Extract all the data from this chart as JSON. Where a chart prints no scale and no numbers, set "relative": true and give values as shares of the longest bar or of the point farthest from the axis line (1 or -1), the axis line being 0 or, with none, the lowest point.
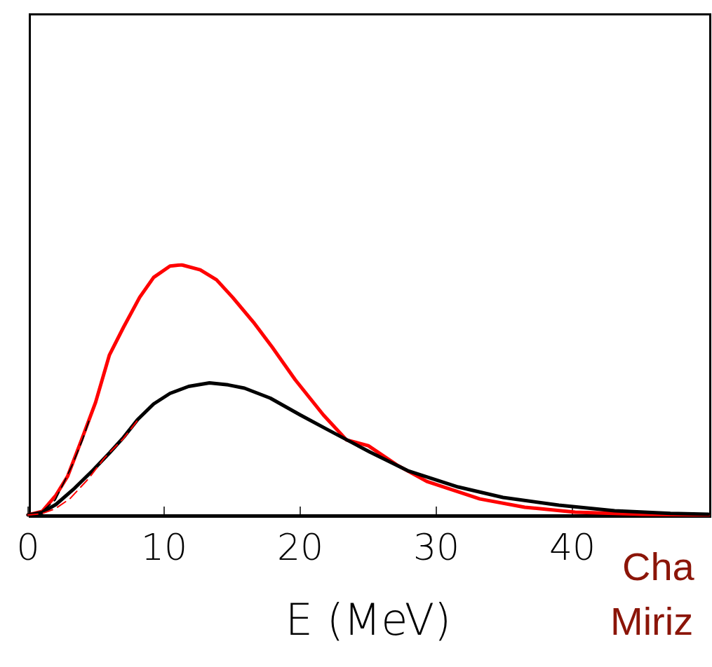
{
  "chart_data": {
    "type": "line",
    "xlabel": "E (MeV)",
    "relative": true,
    "xlim": [
      0,
      50
    ],
    "xticks": [
      0,
      10,
      20,
      30,
      40
    ],
    "grid": false,
    "marker": "none",
    "annotations": [
      "Cha",
      "Miriz"
    ],
    "series": [
      {
        "color": "#ff0000",
        "line_style": "solid",
        "x": [
          0,
          1.03,
          2.05,
          2.9,
          3.93,
          4.96,
          5.98,
          7.01,
          8.2,
          9.23,
          10.43,
          11.28,
          12.65,
          13.85,
          15.03,
          16.57,
          17.95,
          19.64,
          21.7,
          23.4,
          25.0,
          27.1,
          29.3,
          33.2,
          36.5,
          40.2,
          45.1,
          50
        ],
        "values": [
          0,
          0.014,
          0.079,
          0.154,
          0.3,
          0.45,
          0.64,
          0.75,
          0.87,
          0.95,
          0.995,
          1,
          0.98,
          0.94,
          0.87,
          0.77,
          0.67,
          0.54,
          0.4,
          0.3,
          0.277,
          0.2,
          0.134,
          0.064,
          0.031,
          0.011,
          0.003,
          0
        ]
      },
      {
        "color": "#000000",
        "line_style": "solid",
        "x": [
          0,
          1.03,
          2.05,
          3.42,
          4.79,
          5.98,
          7.01,
          8.03,
          9.23,
          10.43,
          11.8,
          13.33,
          14.7,
          15.9,
          17.8,
          20,
          22.05,
          25.1,
          27.9,
          31.6,
          34.9,
          39,
          43.1,
          47.2,
          50
        ],
        "values": [
          0,
          0.01,
          0.042,
          0.107,
          0.18,
          0.248,
          0.31,
          0.38,
          0.444,
          0.486,
          0.514,
          0.528,
          0.52,
          0.507,
          0.467,
          0.4,
          0.34,
          0.252,
          0.177,
          0.112,
          0.07,
          0.039,
          0.017,
          0.006,
          0.003
        ]
      },
      {
        "color": "#000000",
        "line_style": "dashed",
        "x": [
          0,
          1,
          2,
          2.5,
          3.25,
          4,
          4.5
        ],
        "values": [
          0,
          0.012,
          0.06,
          0.115,
          0.2,
          0.3,
          0.38
        ]
      },
      {
        "color": "#ff0000",
        "line_style": "dashed",
        "x": [
          0,
          1,
          2,
          3.08,
          4.44,
          5.64,
          7,
          8
        ],
        "values": [
          0,
          0.005,
          0.025,
          0.065,
          0.145,
          0.23,
          0.305,
          0.375
        ]
      }
    ]
  }
}
